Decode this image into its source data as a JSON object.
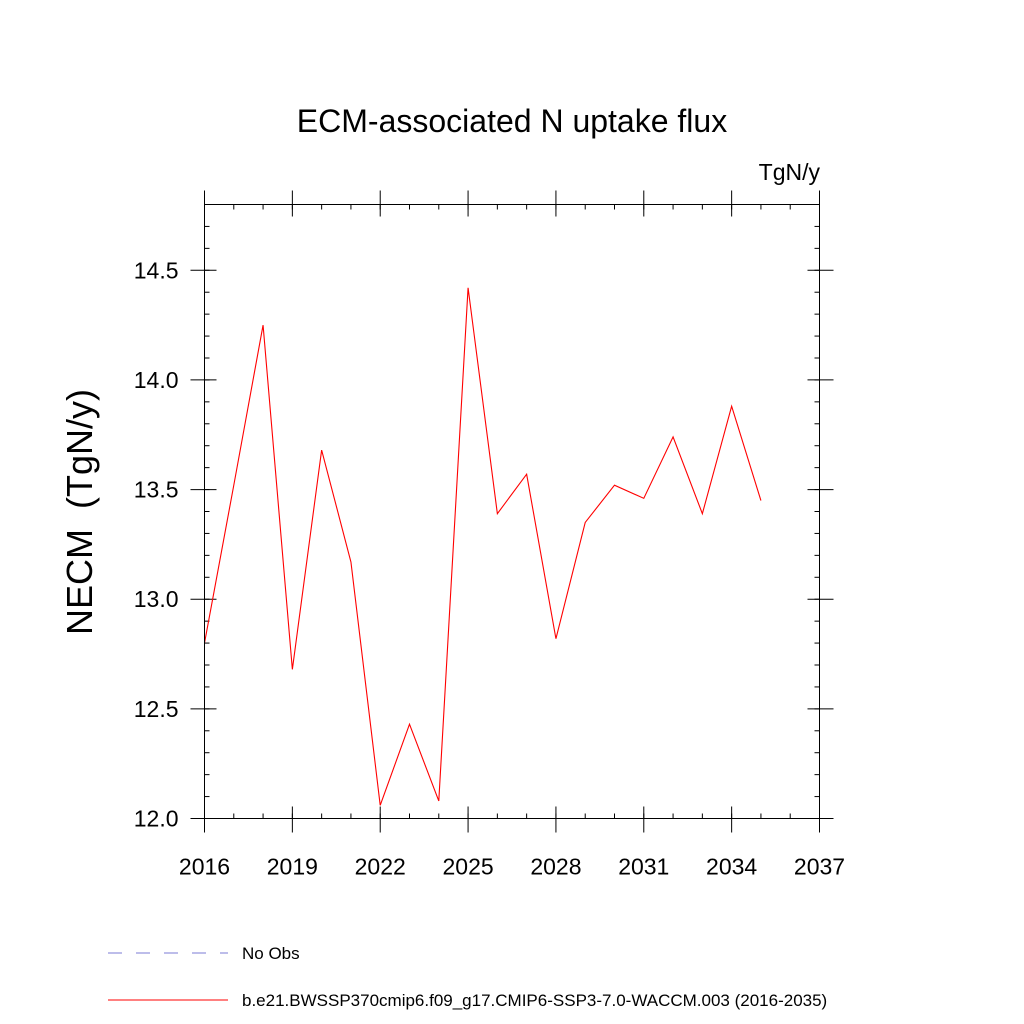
{
  "chart_data": {
    "type": "line",
    "title": "ECM-associated N uptake flux",
    "units": "TgN/y",
    "ylabel": "NECM  (TgN/y)",
    "xlabel": "",
    "xlim": [
      2016,
      2037
    ],
    "ylim": [
      12.0,
      14.8
    ],
    "x_ticks": [
      2016,
      2019,
      2022,
      2025,
      2028,
      2031,
      2034,
      2037
    ],
    "y_ticks": [
      12.0,
      12.5,
      13.0,
      13.5,
      14.0,
      14.5
    ],
    "x_tick_labels": [
      "2016",
      "2019",
      "2022",
      "2025",
      "2028",
      "2031",
      "2034",
      "2037"
    ],
    "y_tick_labels": [
      "12.0",
      "12.5",
      "13.0",
      "13.5",
      "14.0",
      "14.5"
    ],
    "grid": false,
    "legend_position": "bottom-left, below plot",
    "series": [
      {
        "name": "b.e21.BWSSP370cmip6.f09_g17.CMIP6-SSP3-7.0-WACCM.003 (2016-2035)",
        "color": "#ff0000",
        "style": "solid",
        "x": [
          2016,
          2017,
          2018,
          2019,
          2020,
          2021,
          2022,
          2023,
          2024,
          2025,
          2026,
          2027,
          2028,
          2029,
          2030,
          2031,
          2032,
          2033,
          2034,
          2035
        ],
        "y": [
          12.8,
          13.52,
          14.25,
          12.68,
          13.68,
          13.17,
          12.06,
          12.43,
          12.08,
          14.42,
          13.39,
          13.57,
          12.82,
          13.35,
          13.52,
          13.46,
          13.74,
          13.39,
          13.88,
          13.45
        ]
      }
    ],
    "legend": [
      {
        "label": "No Obs",
        "color": "#7b7bd6",
        "style": "dashed"
      },
      {
        "label": "b.e21.BWSSP370cmip6.f09_g17.CMIP6-SSP3-7.0-WACCM.003 (2016-2035)",
        "color": "#ff0000",
        "style": "solid"
      }
    ]
  }
}
